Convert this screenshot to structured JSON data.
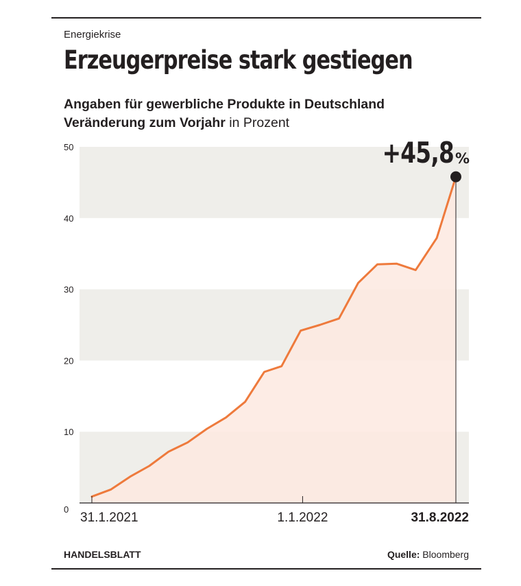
{
  "kicker": "Energiekrise",
  "headline": "Erzeugerpreise stark gestiegen",
  "subtitle_line1": "Angaben für gewerbliche Produkte in Deutschland",
  "subtitle_line2_bold": "Veränderung zum Vorjahr",
  "subtitle_line2_unit": "in Prozent",
  "footer": {
    "brand": "HANDELSBLATT",
    "source_label": "Quelle:",
    "source_value": "Bloomberg"
  },
  "colors": {
    "line": "#ee7a3c",
    "area": "#fde9e1",
    "band": "#efeeea",
    "text": "#231f20"
  },
  "chart_data": {
    "type": "area",
    "ylabel": "in Prozent",
    "ylim": [
      0,
      50
    ],
    "yticks": [
      "0",
      "10",
      "20",
      "30",
      "40",
      "50"
    ],
    "ytick_values": [
      0,
      10,
      20,
      30,
      40,
      50
    ],
    "xticks": [
      {
        "label": "31.1.2021",
        "month_index": 0,
        "bold": false
      },
      {
        "label": "1.1.2022",
        "month_index": 11,
        "bold": false
      },
      {
        "label": "31.8.2022",
        "month_index": 19,
        "bold": true
      }
    ],
    "highlight_label": "+45,8",
    "highlight_unit": "%",
    "series": [
      {
        "values": [
          {
            "x": 0.0,
            "y": 0.9
          },
          {
            "x": 1.0,
            "y": 1.9
          },
          {
            "x": 2.0,
            "y": 3.7
          },
          {
            "x": 3.0,
            "y": 5.2
          },
          {
            "x": 4.0,
            "y": 7.2
          },
          {
            "x": 5.0,
            "y": 8.5
          },
          {
            "x": 6.0,
            "y": 10.4
          },
          {
            "x": 7.0,
            "y": 12.0
          },
          {
            "x": 8.0,
            "y": 14.2
          },
          {
            "x": 9.0,
            "y": 18.4
          },
          {
            "x": 9.9,
            "y": 19.2
          },
          {
            "x": 10.9,
            "y": 24.2
          },
          {
            "x": 11.9,
            "y": 25.0
          },
          {
            "x": 12.9,
            "y": 25.9
          },
          {
            "x": 13.9,
            "y": 30.9
          },
          {
            "x": 14.9,
            "y": 33.5
          },
          {
            "x": 15.9,
            "y": 33.6
          },
          {
            "x": 16.9,
            "y": 32.7
          },
          {
            "x": 18.0,
            "y": 37.2
          },
          {
            "x": 19.0,
            "y": 45.8
          }
        ]
      }
    ]
  }
}
